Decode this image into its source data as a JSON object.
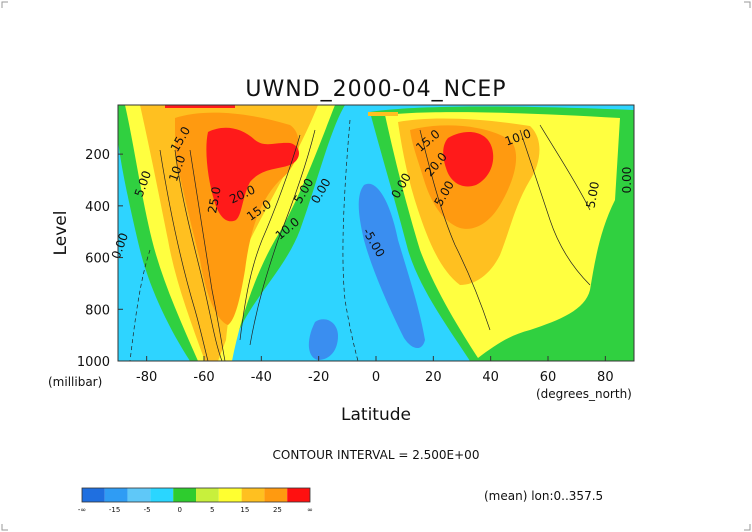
{
  "chart_data": {
    "type": "heatmap",
    "title": "UWND_2000-04_NCEP",
    "xlabel": "Latitude",
    "ylabel": "Level",
    "x_unit": "(degrees_north)",
    "y_unit": "(millibar)",
    "xlim": [
      -90,
      90
    ],
    "ylim": [
      1000,
      10
    ],
    "x_ticks": [
      -80,
      -60,
      -40,
      -20,
      0,
      20,
      40,
      60,
      80
    ],
    "y_ticks": [
      1000,
      800,
      600,
      400,
      200
    ],
    "contour_interval_text": "CONTOUR INTERVAL = 2.500E+00",
    "footer_note": "(mean) lon:0..357.5",
    "contour_labels": [
      "15.0",
      "10.0",
      "5.00",
      "0.00",
      "25.0",
      "20.0",
      "15.0",
      "10.0",
      "5.00",
      "0.00",
      "-5.00",
      "0.00",
      "15.0",
      "20.0",
      "5.00",
      "10.0",
      "5.00",
      "0.00"
    ],
    "colorbar": {
      "labels": [
        "-∞",
        "-15",
        "-5",
        "0",
        "5",
        "15",
        "25",
        "∞"
      ],
      "colors": [
        "#1f6fe0",
        "#2f9cf4",
        "#5fc8f8",
        "#2ad6ff",
        "#2ecc2e",
        "#c8f03c",
        "#ffff30",
        "#ffc020",
        "#ff9a10",
        "#ff1010"
      ]
    },
    "colors": {
      "neg_strong": "#3a8ef0",
      "neg": "#2ed4ff",
      "zero": "#30d040",
      "low": "#ffff40",
      "mid": "#ffc020",
      "high": "#ff9a10",
      "max": "#ff1a1a"
    }
  }
}
